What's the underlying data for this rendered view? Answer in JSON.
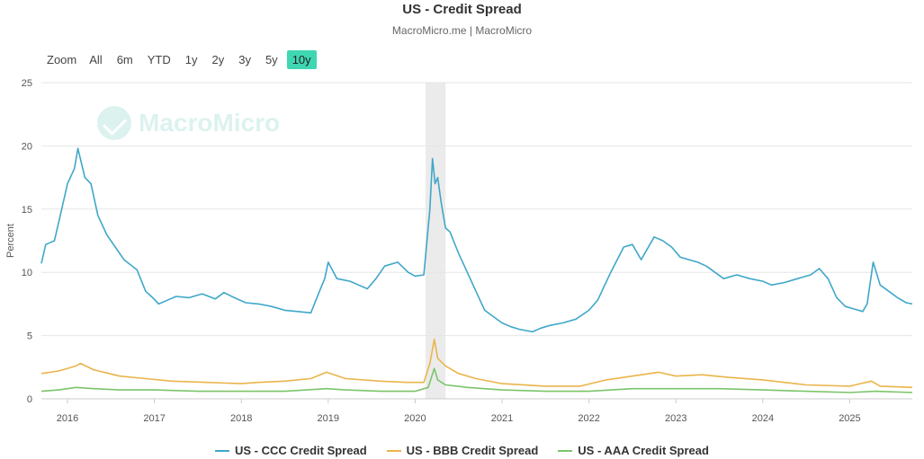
{
  "header": {
    "title": "US - Credit Spread",
    "subtitle": "MacroMicro.me | MacroMicro"
  },
  "zoom": {
    "label": "Zoom",
    "buttons": [
      "All",
      "6m",
      "YTD",
      "1y",
      "2y",
      "3y",
      "5y",
      "10y"
    ],
    "active": "10y"
  },
  "watermark": {
    "text": "MacroMicro"
  },
  "chart_data": {
    "type": "line",
    "title": "US - Credit Spread",
    "subtitle": "MacroMicro.me | MacroMicro",
    "ylabel": "Percent",
    "xlabel": "",
    "xlim": [
      2015.7,
      2025.72
    ],
    "ylim": [
      0,
      25
    ],
    "yticks": [
      "0",
      "5",
      "10",
      "15",
      "20",
      "25"
    ],
    "xticks": [
      "2016",
      "2017",
      "2018",
      "2019",
      "2020",
      "2021",
      "2022",
      "2023",
      "2024",
      "2025"
    ],
    "grid": true,
    "legend_position": "bottom",
    "shaded_region": [
      2020.12,
      2020.35
    ],
    "series": [
      {
        "name": "US - CCC Credit Spread",
        "color": "#3fa7c9",
        "x": [
          2015.7,
          2015.75,
          2015.85,
          2015.95,
          2016.0,
          2016.08,
          2016.12,
          2016.2,
          2016.27,
          2016.35,
          2016.45,
          2016.55,
          2016.65,
          2016.8,
          2016.9,
          2016.98,
          2017.05,
          2017.15,
          2017.25,
          2017.4,
          2017.55,
          2017.7,
          2017.8,
          2017.92,
          2018.05,
          2018.2,
          2018.35,
          2018.5,
          2018.65,
          2018.8,
          2018.9,
          2018.96,
          2019.0,
          2019.1,
          2019.25,
          2019.35,
          2019.45,
          2019.55,
          2019.65,
          2019.8,
          2019.92,
          2020.0,
          2020.1,
          2020.17,
          2020.2,
          2020.23,
          2020.26,
          2020.3,
          2020.35,
          2020.4,
          2020.5,
          2020.6,
          2020.7,
          2020.8,
          2020.9,
          2021.0,
          2021.1,
          2021.2,
          2021.35,
          2021.45,
          2021.55,
          2021.7,
          2021.85,
          2022.0,
          2022.1,
          2022.25,
          2022.4,
          2022.5,
          2022.6,
          2022.75,
          2022.85,
          2022.95,
          2023.05,
          2023.15,
          2023.25,
          2023.35,
          2023.45,
          2023.55,
          2023.7,
          2023.85,
          2024.0,
          2024.1,
          2024.25,
          2024.4,
          2024.55,
          2024.65,
          2024.75,
          2024.85,
          2024.95,
          2025.05,
          2025.15,
          2025.2,
          2025.27,
          2025.35,
          2025.45,
          2025.55,
          2025.65,
          2025.72
        ],
        "values": [
          10.7,
          12.2,
          12.5,
          15.5,
          17.0,
          18.2,
          19.8,
          17.5,
          17.0,
          14.5,
          13.0,
          12.0,
          11.0,
          10.2,
          8.5,
          8.0,
          7.5,
          7.8,
          8.1,
          8.0,
          8.3,
          7.9,
          8.4,
          8.0,
          7.6,
          7.5,
          7.3,
          7.0,
          6.9,
          6.8,
          8.5,
          9.5,
          10.8,
          9.5,
          9.3,
          9.0,
          8.7,
          9.5,
          10.5,
          10.8,
          10.0,
          9.7,
          9.8,
          15.0,
          19.0,
          17.0,
          17.5,
          15.5,
          13.5,
          13.2,
          11.5,
          10.0,
          8.5,
          7.0,
          6.5,
          6.0,
          5.7,
          5.5,
          5.3,
          5.6,
          5.8,
          6.0,
          6.3,
          7.0,
          7.8,
          10.0,
          12.0,
          12.2,
          11.0,
          12.8,
          12.5,
          12.0,
          11.2,
          11.0,
          10.8,
          10.5,
          10.0,
          9.5,
          9.8,
          9.5,
          9.3,
          9.0,
          9.2,
          9.5,
          9.8,
          10.3,
          9.5,
          8.0,
          7.3,
          7.1,
          6.9,
          7.5,
          10.8,
          9.0,
          8.5,
          8.0,
          7.6,
          7.5
        ]
      },
      {
        "name": "US - BBB Credit Spread",
        "color": "#eab44b",
        "x": [
          2015.7,
          2015.9,
          2016.1,
          2016.15,
          2016.3,
          2016.6,
          2016.9,
          2017.2,
          2017.6,
          2018.0,
          2018.2,
          2018.5,
          2018.8,
          2018.98,
          2019.2,
          2019.6,
          2019.9,
          2020.1,
          2020.17,
          2020.22,
          2020.26,
          2020.35,
          2020.5,
          2020.7,
          2021.0,
          2021.5,
          2021.9,
          2022.2,
          2022.5,
          2022.8,
          2023.0,
          2023.3,
          2023.6,
          2024.0,
          2024.5,
          2025.0,
          2025.25,
          2025.35,
          2025.72
        ],
        "values": [
          2.0,
          2.2,
          2.6,
          2.8,
          2.3,
          1.8,
          1.6,
          1.4,
          1.3,
          1.2,
          1.3,
          1.4,
          1.6,
          2.1,
          1.6,
          1.4,
          1.3,
          1.3,
          2.8,
          4.7,
          3.2,
          2.6,
          2.0,
          1.6,
          1.2,
          1.0,
          1.0,
          1.5,
          1.8,
          2.1,
          1.8,
          1.9,
          1.7,
          1.5,
          1.1,
          1.0,
          1.4,
          1.0,
          0.9
        ]
      },
      {
        "name": "US - AAA Credit Spread",
        "color": "#7bc46a",
        "x": [
          2015.7,
          2015.9,
          2016.1,
          2016.3,
          2016.6,
          2017.0,
          2017.5,
          2018.0,
          2018.5,
          2018.98,
          2019.2,
          2019.6,
          2020.0,
          2020.15,
          2020.22,
          2020.26,
          2020.35,
          2020.6,
          2021.0,
          2021.5,
          2022.0,
          2022.5,
          2023.0,
          2023.5,
          2024.0,
          2024.5,
          2025.0,
          2025.3,
          2025.72
        ],
        "values": [
          0.6,
          0.7,
          0.9,
          0.8,
          0.7,
          0.7,
          0.6,
          0.6,
          0.6,
          0.8,
          0.7,
          0.6,
          0.6,
          0.9,
          2.4,
          1.5,
          1.1,
          0.9,
          0.7,
          0.6,
          0.6,
          0.8,
          0.8,
          0.8,
          0.7,
          0.6,
          0.5,
          0.6,
          0.5
        ]
      }
    ]
  }
}
